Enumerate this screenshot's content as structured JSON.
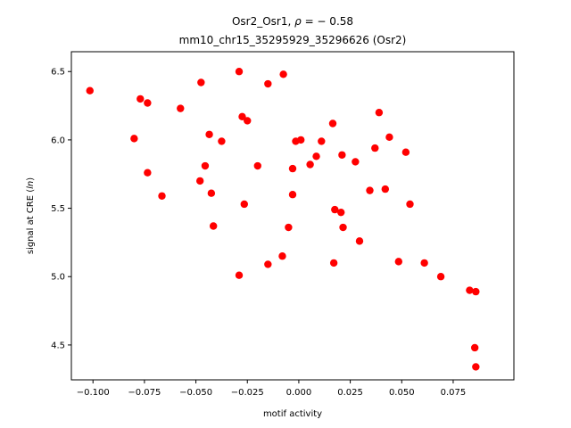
{
  "chart_data": {
    "type": "scatter",
    "title_line1_prefix": "Osr2_Osr1, ",
    "title_line1_rho_symbol": "ρ",
    "title_line1_rho_value": " = − 0.58",
    "title_line2": "mm10_chr15_35295929_35296626 (Osr2)",
    "xlabel": "motif activity",
    "ylabel_prefix": "signal at CRE (",
    "ylabel_italic": "ln",
    "ylabel_suffix": ")",
    "xlim": [
      -0.1105,
      0.1045
    ],
    "ylim": [
      4.245,
      6.645
    ],
    "grid": false,
    "marker_color": "#ff0000",
    "x_ticks": [
      -0.1,
      -0.075,
      -0.05,
      -0.025,
      0.0,
      0.025,
      0.05,
      0.075
    ],
    "x_tick_labels": [
      "−0.100",
      "−0.075",
      "−0.050",
      "−0.025",
      "0.000",
      "0.025",
      "0.050",
      "0.075"
    ],
    "y_ticks": [
      4.5,
      5.0,
      5.5,
      6.0,
      6.5
    ],
    "y_tick_labels": [
      "4.5",
      "5.0",
      "5.5",
      "6.0",
      "6.5"
    ],
    "points": [
      {
        "x": -0.1015,
        "y": 6.36
      },
      {
        "x": -0.077,
        "y": 6.3
      },
      {
        "x": -0.0735,
        "y": 6.27
      },
      {
        "x": -0.0575,
        "y": 6.23
      },
      {
        "x": -0.08,
        "y": 6.01
      },
      {
        "x": -0.0735,
        "y": 5.76
      },
      {
        "x": -0.0665,
        "y": 5.59
      },
      {
        "x": -0.0475,
        "y": 6.42
      },
      {
        "x": -0.0435,
        "y": 6.04
      },
      {
        "x": -0.0375,
        "y": 5.99
      },
      {
        "x": -0.0455,
        "y": 5.81
      },
      {
        "x": -0.048,
        "y": 5.7
      },
      {
        "x": -0.0425,
        "y": 5.61
      },
      {
        "x": -0.0415,
        "y": 5.37
      },
      {
        "x": -0.029,
        "y": 6.5
      },
      {
        "x": -0.0275,
        "y": 6.17
      },
      {
        "x": -0.025,
        "y": 6.14
      },
      {
        "x": -0.02,
        "y": 5.81
      },
      {
        "x": -0.0265,
        "y": 5.53
      },
      {
        "x": -0.029,
        "y": 5.01
      },
      {
        "x": -0.015,
        "y": 6.41
      },
      {
        "x": -0.0075,
        "y": 6.48
      },
      {
        "x": -0.015,
        "y": 5.09
      },
      {
        "x": -0.008,
        "y": 5.15
      },
      {
        "x": -0.005,
        "y": 5.36
      },
      {
        "x": -0.003,
        "y": 5.79
      },
      {
        "x": -0.003,
        "y": 5.6
      },
      {
        "x": -0.0015,
        "y": 5.99
      },
      {
        "x": 0.001,
        "y": 6.0
      },
      {
        "x": 0.0055,
        "y": 5.82
      },
      {
        "x": 0.0085,
        "y": 5.88
      },
      {
        "x": 0.011,
        "y": 5.99
      },
      {
        "x": 0.0165,
        "y": 6.12
      },
      {
        "x": 0.0175,
        "y": 5.49
      },
      {
        "x": 0.0205,
        "y": 5.47
      },
      {
        "x": 0.021,
        "y": 5.89
      },
      {
        "x": 0.0215,
        "y": 5.36
      },
      {
        "x": 0.017,
        "y": 5.1
      },
      {
        "x": 0.0275,
        "y": 5.84
      },
      {
        "x": 0.0295,
        "y": 5.26
      },
      {
        "x": 0.0345,
        "y": 5.63
      },
      {
        "x": 0.037,
        "y": 5.94
      },
      {
        "x": 0.039,
        "y": 6.2
      },
      {
        "x": 0.042,
        "y": 5.64
      },
      {
        "x": 0.044,
        "y": 6.02
      },
      {
        "x": 0.0485,
        "y": 5.11
      },
      {
        "x": 0.052,
        "y": 5.91
      },
      {
        "x": 0.054,
        "y": 5.53
      },
      {
        "x": 0.061,
        "y": 5.1
      },
      {
        "x": 0.069,
        "y": 5.0
      },
      {
        "x": 0.083,
        "y": 4.9
      },
      {
        "x": 0.086,
        "y": 4.89
      },
      {
        "x": 0.0855,
        "y": 4.48
      },
      {
        "x": 0.086,
        "y": 4.34
      }
    ]
  }
}
